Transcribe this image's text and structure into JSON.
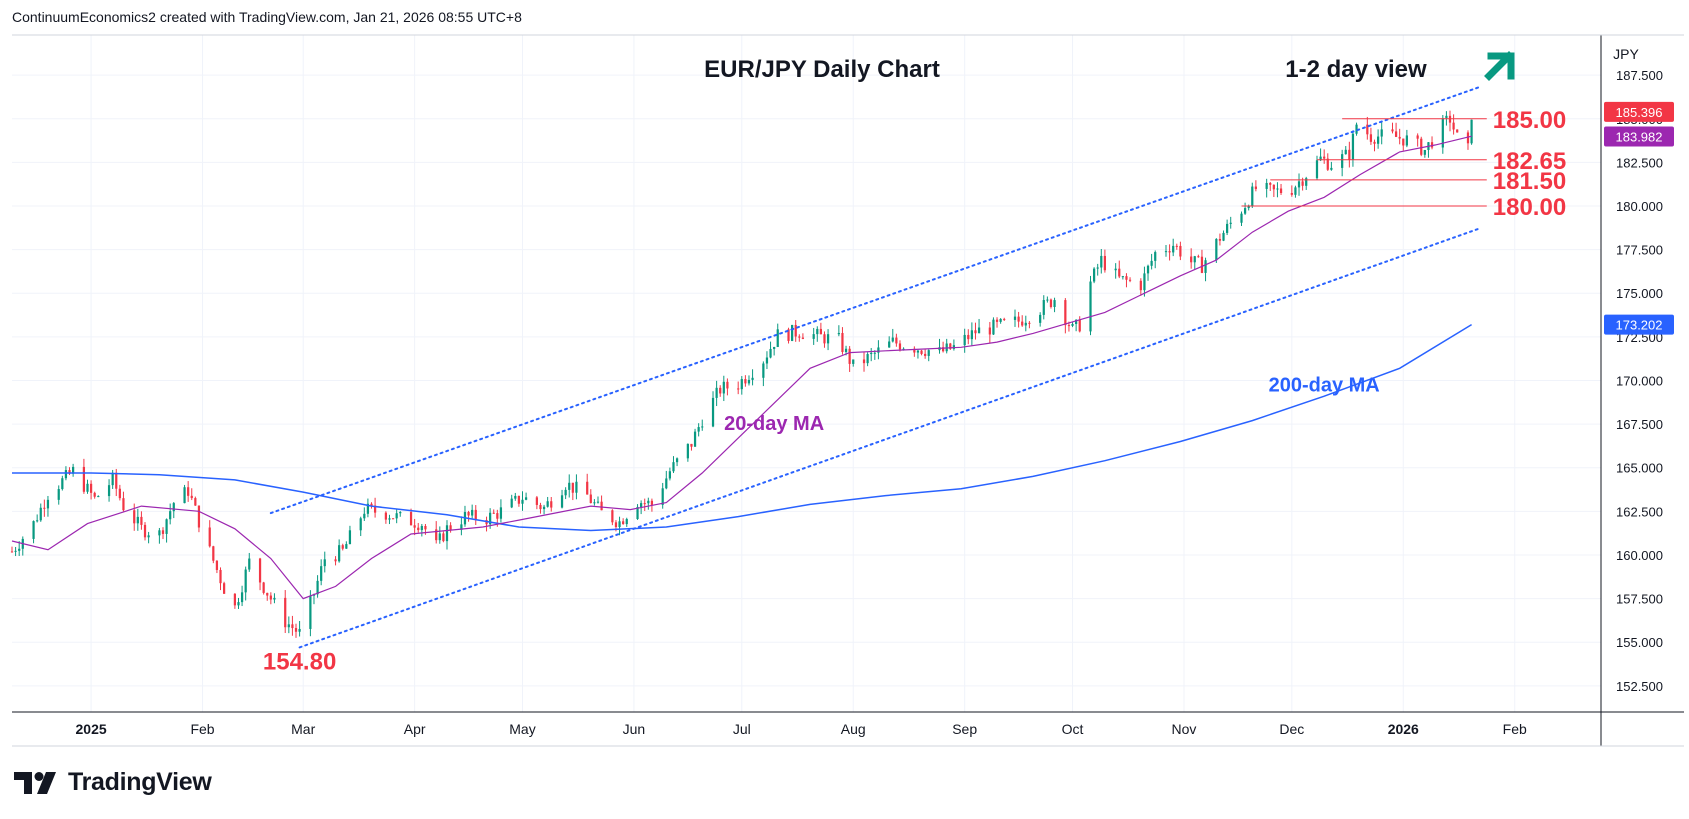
{
  "header": {
    "attribution": "ContinuumEconomics2 created with TradingView.com, Jan 21, 2026 08:55 UTC+8"
  },
  "brand": {
    "name": "TradingView"
  },
  "colors": {
    "up": "#089981",
    "down": "#f23645",
    "ma20": "#9c27b0",
    "ma200": "#2962ff",
    "channel": "#2962ff",
    "level": "#f23645",
    "arrow": "#089981",
    "grid": "#f0f3fa"
  },
  "chart_data": {
    "type": "candlestick",
    "title": "EUR/JPY Daily Chart",
    "subtitle": "1-2 day view",
    "currency": "JPY",
    "y_ticks": [
      "187.500",
      "185.000",
      "182.500",
      "180.000",
      "177.500",
      "175.000",
      "172.500",
      "170.000",
      "167.500",
      "165.000",
      "162.500",
      "160.000",
      "157.500",
      "155.000",
      "152.500"
    ],
    "ylim": [
      151.0,
      189.8
    ],
    "x_ticks": [
      {
        "label": "2025",
        "date": "2025-01-01",
        "bold": true
      },
      {
        "label": "Feb",
        "date": "2025-02-01"
      },
      {
        "label": "Mar",
        "date": "2025-03-01"
      },
      {
        "label": "Apr",
        "date": "2025-04-01"
      },
      {
        "label": "May",
        "date": "2025-05-01"
      },
      {
        "label": "Jun",
        "date": "2025-06-01"
      },
      {
        "label": "Jul",
        "date": "2025-07-01"
      },
      {
        "label": "Aug",
        "date": "2025-08-01"
      },
      {
        "label": "Sep",
        "date": "2025-09-01"
      },
      {
        "label": "Oct",
        "date": "2025-10-01"
      },
      {
        "label": "Nov",
        "date": "2025-11-01"
      },
      {
        "label": "Dec",
        "date": "2025-12-01"
      },
      {
        "label": "2026",
        "date": "2026-01-01",
        "bold": true
      },
      {
        "label": "Feb",
        "date": "2026-02-01"
      }
    ],
    "xlim": [
      "2024-12-10",
      "2026-02-25"
    ],
    "close_path": [
      [
        "2024-12-10",
        160.2
      ],
      [
        "2024-12-16",
        161.8
      ],
      [
        "2024-12-20",
        163.5
      ],
      [
        "2024-12-27",
        164.8
      ],
      [
        "2025-01-02",
        163.2
      ],
      [
        "2025-01-07",
        164.3
      ],
      [
        "2025-01-10",
        162.8
      ],
      [
        "2025-01-15",
        161.5
      ],
      [
        "2025-01-20",
        161.2
      ],
      [
        "2025-01-24",
        163.0
      ],
      [
        "2025-01-28",
        163.7
      ],
      [
        "2025-02-03",
        160.2
      ],
      [
        "2025-02-07",
        158.1
      ],
      [
        "2025-02-10",
        157.0
      ],
      [
        "2025-02-14",
        159.6
      ],
      [
        "2025-02-20",
        157.5
      ],
      [
        "2025-02-24",
        156.2
      ],
      [
        "2025-02-28",
        155.5
      ],
      [
        "2025-03-04",
        157.8
      ],
      [
        "2025-03-07",
        159.8
      ],
      [
        "2025-03-12",
        160.2
      ],
      [
        "2025-03-18",
        162.6
      ],
      [
        "2025-03-24",
        162.4
      ],
      [
        "2025-03-28",
        162.1
      ],
      [
        "2025-04-03",
        161.8
      ],
      [
        "2025-04-07",
        160.5
      ],
      [
        "2025-04-10",
        161.5
      ],
      [
        "2025-04-15",
        162.2
      ],
      [
        "2025-04-21",
        162.1
      ],
      [
        "2025-04-25",
        162.5
      ],
      [
        "2025-05-01",
        163.3
      ],
      [
        "2025-05-07",
        162.7
      ],
      [
        "2025-05-13",
        164.1
      ],
      [
        "2025-05-19",
        163.4
      ],
      [
        "2025-05-23",
        162.4
      ],
      [
        "2025-05-28",
        161.9
      ],
      [
        "2025-06-02",
        163.1
      ],
      [
        "2025-06-06",
        162.9
      ],
      [
        "2025-06-11",
        164.8
      ],
      [
        "2025-06-17",
        166.4
      ],
      [
        "2025-06-20",
        167.8
      ],
      [
        "2025-06-25",
        169.5
      ],
      [
        "2025-06-30",
        169.8
      ],
      [
        "2025-07-07",
        171.2
      ],
      [
        "2025-07-11",
        172.6
      ],
      [
        "2025-07-17",
        172.8
      ],
      [
        "2025-07-23",
        172.5
      ],
      [
        "2025-07-28",
        172.3
      ],
      [
        "2025-08-01",
        170.8
      ],
      [
        "2025-08-06",
        171.4
      ],
      [
        "2025-08-12",
        172.2
      ],
      [
        "2025-08-18",
        171.9
      ],
      [
        "2025-08-25",
        171.6
      ],
      [
        "2025-08-29",
        171.9
      ],
      [
        "2025-09-04",
        172.8
      ],
      [
        "2025-09-10",
        173.1
      ],
      [
        "2025-09-16",
        173.4
      ],
      [
        "2025-09-22",
        174.1
      ],
      [
        "2025-09-26",
        174.7
      ],
      [
        "2025-10-01",
        172.9
      ],
      [
        "2025-10-03",
        173.2
      ],
      [
        "2025-10-06",
        175.6
      ],
      [
        "2025-10-09",
        176.9
      ],
      [
        "2025-10-14",
        175.8
      ],
      [
        "2025-10-20",
        175.5
      ],
      [
        "2025-10-24",
        177.3
      ],
      [
        "2025-10-29",
        177.8
      ],
      [
        "2025-11-03",
        176.8
      ],
      [
        "2025-11-06",
        176.6
      ],
      [
        "2025-11-11",
        178.2
      ],
      [
        "2025-11-17",
        179.8
      ],
      [
        "2025-11-21",
        181.0
      ],
      [
        "2025-11-26",
        180.8
      ],
      [
        "2025-12-01",
        181.0
      ],
      [
        "2025-12-04",
        181.6
      ],
      [
        "2025-12-09",
        182.7
      ],
      [
        "2025-12-12",
        182.4
      ],
      [
        "2025-12-17",
        183.0
      ],
      [
        "2025-12-19",
        184.7
      ],
      [
        "2025-12-23",
        184.0
      ],
      [
        "2025-12-29",
        184.0
      ],
      [
        "2026-01-02",
        183.8
      ],
      [
        "2026-01-07",
        183.2
      ],
      [
        "2026-01-12",
        184.6
      ],
      [
        "2026-01-14",
        185.0
      ],
      [
        "2026-01-16",
        183.9
      ],
      [
        "2026-01-19",
        183.2
      ],
      [
        "2026-01-20",
        185.3
      ]
    ],
    "ma20": [
      [
        "2024-12-10",
        160.8
      ],
      [
        "2024-12-20",
        160.3
      ],
      [
        "2024-12-31",
        161.8
      ],
      [
        "2025-01-15",
        162.8
      ],
      [
        "2025-01-31",
        162.5
      ],
      [
        "2025-02-10",
        161.5
      ],
      [
        "2025-02-20",
        159.8
      ],
      [
        "2025-03-01",
        157.5
      ],
      [
        "2025-03-10",
        158.2
      ],
      [
        "2025-03-20",
        159.8
      ],
      [
        "2025-03-31",
        161.2
      ],
      [
        "2025-04-10",
        161.4
      ],
      [
        "2025-04-20",
        161.6
      ],
      [
        "2025-04-30",
        162.0
      ],
      [
        "2025-05-10",
        162.4
      ],
      [
        "2025-05-20",
        162.8
      ],
      [
        "2025-05-31",
        162.6
      ],
      [
        "2025-06-10",
        163.0
      ],
      [
        "2025-06-20",
        164.7
      ],
      [
        "2025-06-30",
        166.7
      ],
      [
        "2025-07-10",
        168.7
      ],
      [
        "2025-07-20",
        170.7
      ],
      [
        "2025-07-31",
        171.6
      ],
      [
        "2025-08-10",
        171.7
      ],
      [
        "2025-08-20",
        171.8
      ],
      [
        "2025-08-31",
        171.9
      ],
      [
        "2025-09-10",
        172.2
      ],
      [
        "2025-09-20",
        172.7
      ],
      [
        "2025-09-30",
        173.3
      ],
      [
        "2025-10-10",
        173.9
      ],
      [
        "2025-10-20",
        174.9
      ],
      [
        "2025-10-31",
        176.0
      ],
      [
        "2025-11-10",
        176.9
      ],
      [
        "2025-11-20",
        178.5
      ],
      [
        "2025-11-30",
        179.7
      ],
      [
        "2025-12-10",
        180.5
      ],
      [
        "2025-12-20",
        181.8
      ],
      [
        "2025-12-31",
        183.1
      ],
      [
        "2026-01-10",
        183.5
      ],
      [
        "2026-01-20",
        184.0
      ]
    ],
    "ma200": [
      [
        "2024-12-10",
        164.7
      ],
      [
        "2025-01-01",
        164.7
      ],
      [
        "2025-01-20",
        164.6
      ],
      [
        "2025-02-10",
        164.3
      ],
      [
        "2025-03-01",
        163.6
      ],
      [
        "2025-03-20",
        162.8
      ],
      [
        "2025-04-10",
        162.3
      ],
      [
        "2025-04-30",
        161.6
      ],
      [
        "2025-05-20",
        161.4
      ],
      [
        "2025-06-10",
        161.6
      ],
      [
        "2025-06-30",
        162.2
      ],
      [
        "2025-07-20",
        162.9
      ],
      [
        "2025-08-10",
        163.4
      ],
      [
        "2025-08-31",
        163.8
      ],
      [
        "2025-09-20",
        164.5
      ],
      [
        "2025-10-10",
        165.4
      ],
      [
        "2025-10-31",
        166.5
      ],
      [
        "2025-11-20",
        167.7
      ],
      [
        "2025-12-10",
        169.1
      ],
      [
        "2025-12-31",
        170.7
      ],
      [
        "2026-01-20",
        173.2
      ]
    ],
    "channel_upper": [
      [
        "2025-02-20",
        162.4
      ],
      [
        "2026-01-22",
        186.8
      ]
    ],
    "channel_lower": [
      [
        "2025-02-28",
        154.7
      ],
      [
        "2026-01-22",
        178.7
      ]
    ],
    "levels": [
      {
        "label": "185.00",
        "value": 185.0,
        "from": "2025-12-15"
      },
      {
        "label": "182.65",
        "value": 182.65,
        "from": "2025-12-08"
      },
      {
        "label": "181.50",
        "value": 181.5,
        "from": "2025-11-25"
      },
      {
        "label": "180.00",
        "value": 180.0,
        "from": "2025-11-17"
      }
    ],
    "annotations": [
      {
        "text": "154.80",
        "date": "2025-02-28",
        "value": 154.8
      },
      {
        "text": "20-day MA",
        "date": "2025-07-10",
        "value": 167.5
      },
      {
        "text": "200-day MA",
        "date": "2025-12-10",
        "value": 169.7
      }
    ],
    "price_badges": [
      {
        "value": 185.396,
        "label": "185.396",
        "color": "#f23645"
      },
      {
        "value": 183.982,
        "label": "183.982",
        "color": "#9c27b0"
      },
      {
        "value": 173.202,
        "label": "173.202",
        "color": "#2962ff"
      }
    ],
    "grid": true,
    "direction_arrow": "up-right"
  }
}
